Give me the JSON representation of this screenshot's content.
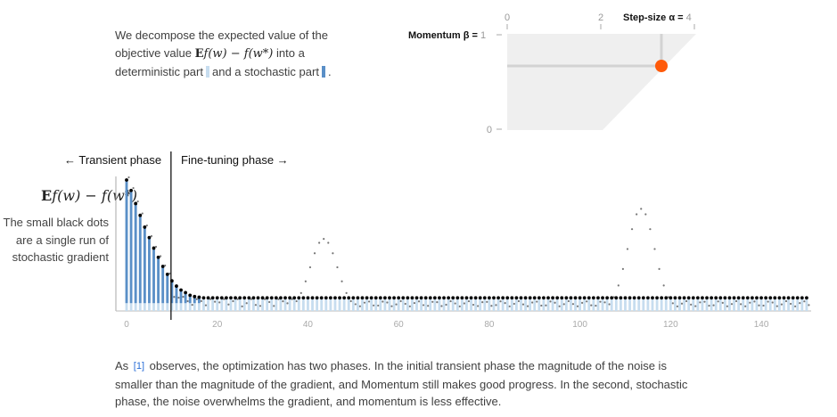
{
  "intro": {
    "line1": "We decompose the expected value of the",
    "line2_pre": "objective value",
    "math_E": "E",
    "math_expr": "f(w) − f(w*)",
    "line2_post": "into a",
    "part_det": "deterministic part",
    "part_and": "and a stochastic part",
    "period": "."
  },
  "controls": {
    "momentum_label": "Momentum β = ",
    "momentum_value": "1",
    "stepsize_label": "Step-size α = ",
    "stepsize_value": "4",
    "x_ticks": [
      "0",
      "2"
    ],
    "y_bottom": "0",
    "handle_alpha": 3.5,
    "handle_beta": 0.66
  },
  "phases": {
    "transient": "← Transient phase",
    "finetuning": "Fine-tuning phase →",
    "split_iteration": 10
  },
  "chart": {
    "ylabel_E": "E",
    "ylabel_expr": "f(w) − f(w*)",
    "note": "The small black dots are a single run of stochastic gradient",
    "x_ticks": [
      "0",
      "20",
      "40",
      "60",
      "80",
      "100",
      "120",
      "140"
    ]
  },
  "chart_data": {
    "type": "bar",
    "x_range": [
      0,
      151
    ],
    "x_ticks": [
      0,
      20,
      40,
      60,
      80,
      100,
      120,
      140
    ],
    "log_scale_y": true,
    "stack": [
      "deterministic",
      "stochastic"
    ],
    "transient_values": [
      1.0,
      0.92,
      0.82,
      0.73,
      0.64,
      0.56,
      0.48,
      0.41,
      0.34,
      0.28,
      0.23,
      0.19,
      0.16,
      0.14,
      0.12,
      0.11,
      0.105,
      0.1
    ],
    "steady_value": 0.1,
    "single_run_peaks": [
      {
        "iteration": 43,
        "value": 0.55
      },
      {
        "iteration": 113,
        "value": 0.78
      }
    ]
  },
  "colors": {
    "deterministic": "#5a8fc7",
    "stochastic": "#c7ddef",
    "handle": "#ff5a0a",
    "region": "#efefef"
  },
  "outro": {
    "pre": "As",
    "cite": "[1]",
    "text": "observes, the optimization has two phases. In the initial transient phase the magnitude of the noise is smaller than the magnitude of the gradient, and Momentum still makes good progress. In the second, stochastic phase, the noise overwhelms the gradient, and momentum is less effective."
  }
}
